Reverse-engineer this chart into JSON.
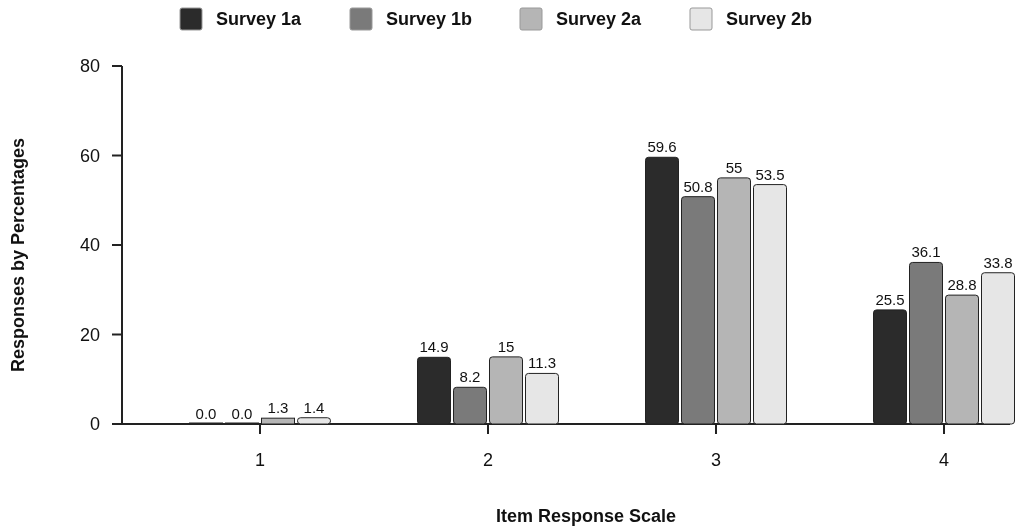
{
  "chart_data": {
    "type": "bar",
    "xlabel": "Item Response Scale",
    "ylabel": "Responses by Percentages",
    "categories": [
      "1",
      "2",
      "3",
      "4"
    ],
    "series": [
      {
        "name": "Survey 1a",
        "color": "#2b2b2b",
        "values": [
          0.0,
          14.9,
          59.6,
          25.5
        ],
        "value_labels": [
          "0.0",
          "14.9",
          "59.6",
          "25.5"
        ]
      },
      {
        "name": "Survey 1b",
        "color": "#7a7a7a",
        "values": [
          0.0,
          8.2,
          50.8,
          36.1
        ],
        "value_labels": [
          "0.0",
          "8.2",
          "50.8",
          "36.1"
        ]
      },
      {
        "name": "Survey 2a",
        "color": "#b5b5b5",
        "values": [
          1.3,
          15,
          55,
          28.8
        ],
        "value_labels": [
          "1.3",
          "15",
          "55",
          "28.8"
        ]
      },
      {
        "name": "Survey 2b",
        "color": "#e6e6e6",
        "values": [
          1.4,
          11.3,
          53.5,
          33.8
        ],
        "value_labels": [
          "1.4",
          "11.3",
          "53.5",
          "33.8"
        ]
      }
    ],
    "ylim": [
      0,
      80
    ],
    "yticks": [
      0,
      20,
      40,
      60,
      80
    ],
    "grid": false,
    "legend": "top"
  }
}
